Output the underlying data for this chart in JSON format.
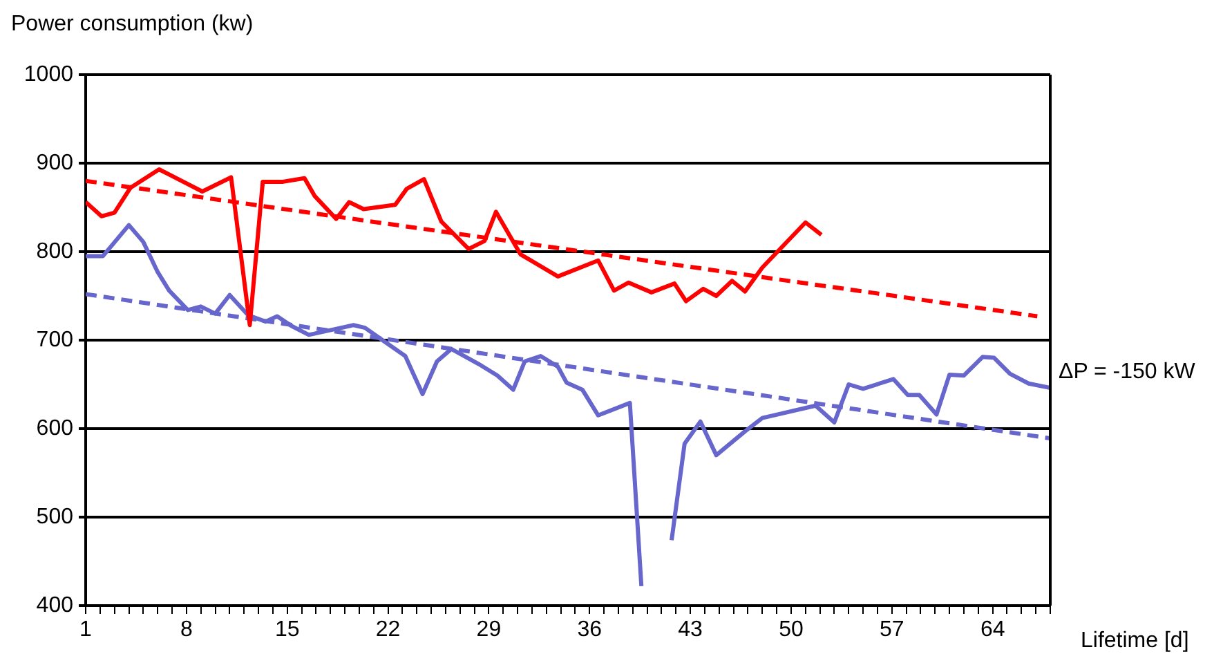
{
  "chart_data": {
    "type": "line",
    "ylabel": "Power consumption (kw)",
    "xlabel": "Lifetime [d]",
    "xlim": [
      1,
      68
    ],
    "xticks": [
      1,
      {
        "value": 2,
        "label": null
      },
      {
        "value": 3,
        "label": null
      },
      {
        "value": 4,
        "label": null
      },
      {
        "value": 5,
        "label": null
      },
      {
        "value": 6,
        "label": null
      },
      {
        "value": 7,
        "label": null
      },
      8,
      {
        "value": 9,
        "label": null
      },
      {
        "value": 10,
        "label": null
      },
      {
        "value": 11,
        "label": null
      },
      {
        "value": 12,
        "label": null
      },
      {
        "value": 13,
        "label": null
      },
      {
        "value": 14,
        "label": null
      },
      15,
      {
        "value": 16,
        "label": null
      },
      {
        "value": 17,
        "label": null
      },
      {
        "value": 18,
        "label": null
      },
      {
        "value": 19,
        "label": null
      },
      {
        "value": 20,
        "label": null
      },
      {
        "value": 21,
        "label": null
      },
      22,
      {
        "value": 23,
        "label": null
      },
      {
        "value": 24,
        "label": null
      },
      {
        "value": 25,
        "label": null
      },
      {
        "value": 26,
        "label": null
      },
      {
        "value": 27,
        "label": null
      },
      {
        "value": 28,
        "label": null
      },
      29,
      {
        "value": 30,
        "label": null
      },
      {
        "value": 31,
        "label": null
      },
      {
        "value": 32,
        "label": null
      },
      {
        "value": 33,
        "label": null
      },
      {
        "value": 34,
        "label": null
      },
      {
        "value": 35,
        "label": null
      },
      36,
      {
        "value": 37,
        "label": null
      },
      {
        "value": 38,
        "label": null
      },
      {
        "value": 39,
        "label": null
      },
      {
        "value": 40,
        "label": null
      },
      {
        "value": 41,
        "label": null
      },
      {
        "value": 42,
        "label": null
      },
      43,
      {
        "value": 44,
        "label": null
      },
      {
        "value": 45,
        "label": null
      },
      {
        "value": 46,
        "label": null
      },
      {
        "value": 47,
        "label": null
      },
      {
        "value": 48,
        "label": null
      },
      {
        "value": 49,
        "label": null
      },
      50,
      {
        "value": 51,
        "label": null
      },
      {
        "value": 52,
        "label": null
      },
      {
        "value": 53,
        "label": null
      },
      {
        "value": 54,
        "label": null
      },
      {
        "value": 55,
        "label": null
      },
      {
        "value": 56,
        "label": null
      },
      57,
      {
        "value": 58,
        "label": null
      },
      {
        "value": 59,
        "label": null
      },
      {
        "value": 60,
        "label": null
      },
      {
        "value": 61,
        "label": null
      },
      {
        "value": 62,
        "label": null
      },
      {
        "value": 63,
        "label": null
      },
      64,
      {
        "value": 65,
        "label": null
      },
      {
        "value": 66,
        "label": null
      },
      {
        "value": 67,
        "label": null
      },
      {
        "value": 68,
        "label": null
      }
    ],
    "ylim": [
      400,
      1000
    ],
    "yticks": [
      400,
      500,
      600,
      700,
      800,
      900,
      1000
    ],
    "grid": "y",
    "legend": false,
    "marker": "none",
    "series": [
      {
        "color": "#ff0000",
        "line_style": "solid",
        "x": [
          1,
          2.1,
          3,
          4.1,
          6.1,
          9.1,
          11.1,
          12.4,
          13.3,
          14.7,
          16.2,
          16.9,
          18.4,
          19.3,
          20.3,
          22.5,
          23.3,
          24.5,
          25.7,
          27.6,
          28.7,
          29.5,
          31.2,
          33.8,
          36.6,
          37.7,
          38.7,
          40.3,
          41.9,
          42.7,
          43.9,
          44.8,
          45.9,
          46.8,
          48,
          51,
          52.1
        ],
        "values": [
          856,
          840,
          844,
          872,
          893,
          868,
          884,
          717,
          879,
          879,
          883,
          863,
          837,
          856,
          848,
          853,
          871,
          882,
          834,
          803,
          812,
          845,
          797,
          772,
          790,
          756,
          765,
          754,
          764,
          744,
          758,
          750,
          767,
          755,
          782,
          833,
          819
        ]
      },
      {
        "color": "#6666cc",
        "line_style": "solid",
        "x": [
          1,
          2.2,
          4,
          5,
          6,
          6.8,
          8.1,
          9,
          10,
          11,
          12.3,
          13.5,
          14.3,
          15.3,
          16.5,
          18.2,
          19.6,
          20.4,
          21.7,
          23.2,
          24.4,
          25.4,
          26.4,
          28.3,
          29.6,
          30.7,
          31.5,
          32.6,
          33.8,
          34.4,
          35.5,
          36.6,
          38.8,
          39.6,
          40.6,
          41.7,
          42.6,
          43.7,
          44.8,
          46.8,
          48,
          51.7,
          53,
          54,
          55,
          57.1,
          58.1,
          58.9,
          60.1,
          61,
          62,
          63.3,
          64.1,
          65.2,
          66.5,
          68
        ],
        "values": [
          795,
          795,
          830,
          811,
          777,
          756,
          734,
          738,
          730,
          751,
          728,
          721,
          727,
          716,
          706,
          712,
          717,
          714,
          699,
          682,
          639,
          676,
          690,
          673,
          660,
          644,
          676,
          682,
          670,
          652,
          644,
          615,
          629,
          422,
          null,
          474,
          583,
          608,
          570,
          597,
          612,
          626,
          607,
          650,
          645,
          656,
          638,
          638,
          616,
          661,
          660,
          681,
          680,
          662,
          651,
          646
        ]
      },
      {
        "type": "line",
        "color": "#ff0000",
        "line_style": "dashed",
        "x": [
          1,
          67.1
        ],
        "values": [
          880,
          727
        ]
      },
      {
        "type": "line",
        "color": "#6666cc",
        "line_style": "dashed",
        "x": [
          1,
          68
        ],
        "values": [
          752,
          589
        ]
      }
    ],
    "annotations": [
      "ΔP = -150 kW"
    ]
  }
}
